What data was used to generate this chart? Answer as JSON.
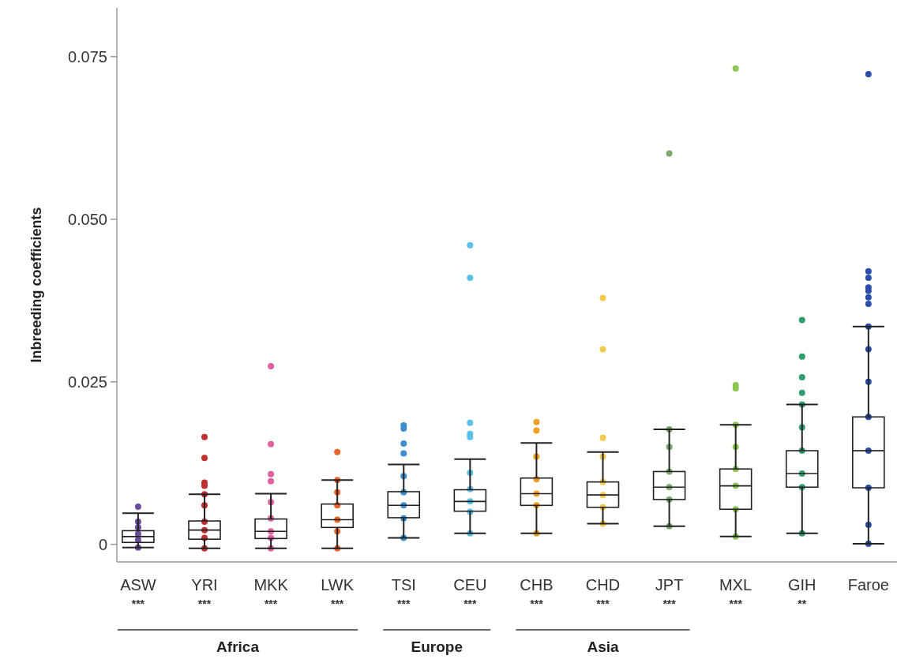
{
  "chart_data": {
    "type": "box",
    "ylabel": "Inbreeding coefficients",
    "categories": [
      "ASW",
      "YRI",
      "MKK",
      "LWK",
      "TSI",
      "CEU",
      "CHB",
      "CHD",
      "JPT",
      "MXL",
      "GIH",
      "Faroe"
    ],
    "boxes": [
      {
        "low": -0.0005,
        "q1": 0.0003,
        "median": 0.0012,
        "q3": 0.0021,
        "high": 0.0048
      },
      {
        "low": -0.0006,
        "q1": 0.0008,
        "median": 0.0022,
        "q3": 0.0036,
        "high": 0.0077
      },
      {
        "low": -0.0006,
        "q1": 0.0009,
        "median": 0.002,
        "q3": 0.0039,
        "high": 0.0078
      },
      {
        "low": -0.0006,
        "q1": 0.0026,
        "median": 0.0038,
        "q3": 0.0062,
        "high": 0.0099
      },
      {
        "low": 0.001,
        "q1": 0.0041,
        "median": 0.006,
        "q3": 0.0081,
        "high": 0.0123
      },
      {
        "low": 0.0017,
        "q1": 0.0051,
        "median": 0.0066,
        "q3": 0.0084,
        "high": 0.0131
      },
      {
        "low": 0.0017,
        "q1": 0.006,
        "median": 0.0078,
        "q3": 0.0102,
        "high": 0.0156
      },
      {
        "low": 0.0032,
        "q1": 0.0057,
        "median": 0.0076,
        "q3": 0.0096,
        "high": 0.0142
      },
      {
        "low": 0.0028,
        "q1": 0.0069,
        "median": 0.0088,
        "q3": 0.0112,
        "high": 0.0177
      },
      {
        "low": 0.0012,
        "q1": 0.0054,
        "median": 0.009,
        "q3": 0.0116,
        "high": 0.0184
      },
      {
        "low": 0.0017,
        "q1": 0.0088,
        "median": 0.0109,
        "q3": 0.0144,
        "high": 0.0215
      },
      {
        "low": 0.0001,
        "q1": 0.0087,
        "median": 0.0144,
        "q3": 0.0196,
        "high": 0.0335
      }
    ],
    "series": [
      {
        "type": "scatter",
        "color": "#6a4c9c",
        "x": [
          "ASW",
          "ASW",
          "ASW",
          "ASW",
          "ASW",
          "ASW"
        ],
        "values": [
          -0.0005,
          0.0007,
          0.0016,
          0.0026,
          0.0035,
          0.0058
        ]
      },
      {
        "type": "scatter",
        "color": "#c0302e",
        "x": [
          "YRI",
          "YRI",
          "YRI",
          "YRI",
          "YRI",
          "YRI",
          "YRI",
          "YRI",
          "YRI",
          "YRI"
        ],
        "values": [
          -0.0006,
          0.001,
          0.0022,
          0.0035,
          0.006,
          0.0077,
          0.009,
          0.0095,
          0.0133,
          0.0165
        ]
      },
      {
        "type": "scatter",
        "color": "#e060a0",
        "x": [
          "MKK",
          "MKK",
          "MKK",
          "MKK",
          "MKK",
          "MKK",
          "MKK",
          "MKK",
          "MKK"
        ],
        "values": [
          -0.0006,
          0.001,
          0.002,
          0.004,
          0.0065,
          0.0097,
          0.0108,
          0.0154,
          0.0274
        ]
      },
      {
        "type": "scatter",
        "color": "#e8622a",
        "x": [
          "LWK",
          "LWK",
          "LWK",
          "LWK",
          "LWK",
          "LWK",
          "LWK"
        ],
        "values": [
          -0.0006,
          0.002,
          0.0038,
          0.006,
          0.008,
          0.0099,
          0.0142
        ]
      },
      {
        "type": "scatter",
        "color": "#3f8fd0",
        "x": [
          "TSI",
          "TSI",
          "TSI",
          "TSI",
          "TSI",
          "TSI",
          "TSI",
          "TSI",
          "TSI"
        ],
        "values": [
          0.001,
          0.004,
          0.006,
          0.008,
          0.0105,
          0.014,
          0.0155,
          0.0178,
          0.0183
        ]
      },
      {
        "type": "scatter",
        "color": "#5bc0e8",
        "x": [
          "CEU",
          "CEU",
          "CEU",
          "CEU",
          "CEU",
          "CEU",
          "CEU",
          "CEU",
          "CEU",
          "CEU"
        ],
        "values": [
          0.0017,
          0.005,
          0.0066,
          0.0085,
          0.011,
          0.0165,
          0.017,
          0.0187,
          0.041,
          0.046
        ]
      },
      {
        "type": "scatter",
        "color": "#f0a020",
        "x": [
          "CHB",
          "CHB",
          "CHB",
          "CHB",
          "CHB",
          "CHB",
          "CHB"
        ],
        "values": [
          0.0017,
          0.006,
          0.0078,
          0.01,
          0.0135,
          0.0175,
          0.0188
        ]
      },
      {
        "type": "scatter",
        "color": "#f2c94c",
        "x": [
          "CHD",
          "CHD",
          "CHD",
          "CHD",
          "CHD",
          "CHD",
          "CHD",
          "CHD"
        ],
        "values": [
          0.0032,
          0.0057,
          0.0076,
          0.0096,
          0.0135,
          0.0164,
          0.03,
          0.0379
        ]
      },
      {
        "type": "scatter",
        "color": "#7fa870",
        "x": [
          "JPT",
          "JPT",
          "JPT",
          "JPT",
          "JPT",
          "JPT",
          "JPT"
        ],
        "values": [
          0.0028,
          0.0069,
          0.0088,
          0.0112,
          0.015,
          0.0177,
          0.0601
        ]
      },
      {
        "type": "scatter",
        "color": "#8dc653",
        "x": [
          "MXL",
          "MXL",
          "MXL",
          "MXL",
          "MXL",
          "MXL",
          "MXL",
          "MXL",
          "MXL"
        ],
        "values": [
          0.0012,
          0.0054,
          0.009,
          0.0116,
          0.015,
          0.0184,
          0.024,
          0.0245,
          0.0732
        ]
      },
      {
        "type": "scatter",
        "color": "#2e9e6e",
        "x": [
          "GIH",
          "GIH",
          "GIH",
          "GIH",
          "GIH",
          "GIH",
          "GIH",
          "GIH",
          "GIH",
          "GIH"
        ],
        "values": [
          0.0017,
          0.0088,
          0.0109,
          0.0144,
          0.018,
          0.0215,
          0.0233,
          0.0257,
          0.0289,
          0.0345
        ]
      },
      {
        "type": "scatter",
        "color": "#2b4ea8",
        "x": [
          "Faroe",
          "Faroe",
          "Faroe",
          "Faroe",
          "Faroe",
          "Faroe",
          "Faroe",
          "Faroe",
          "Faroe",
          "Faroe",
          "Faroe",
          "Faroe",
          "Faroe",
          "Faroe",
          "Faroe"
        ],
        "values": [
          0.0001,
          0.003,
          0.0087,
          0.0144,
          0.0196,
          0.025,
          0.03,
          0.0335,
          0.037,
          0.038,
          0.039,
          0.0395,
          0.041,
          0.042,
          0.0723
        ]
      }
    ],
    "ylim": [
      -0.0027,
      0.0825
    ],
    "yticks": [
      0,
      0.025,
      {
        "value": 0.05,
        "label": "0.050"
      },
      0.075
    ],
    "grid": false,
    "marker": "circle",
    "annotations": [
      "***",
      "***",
      "***",
      "***",
      "***",
      "***",
      "***",
      "***",
      "***",
      "***",
      "**",
      "Africa",
      "Europe",
      "Asia"
    ]
  }
}
